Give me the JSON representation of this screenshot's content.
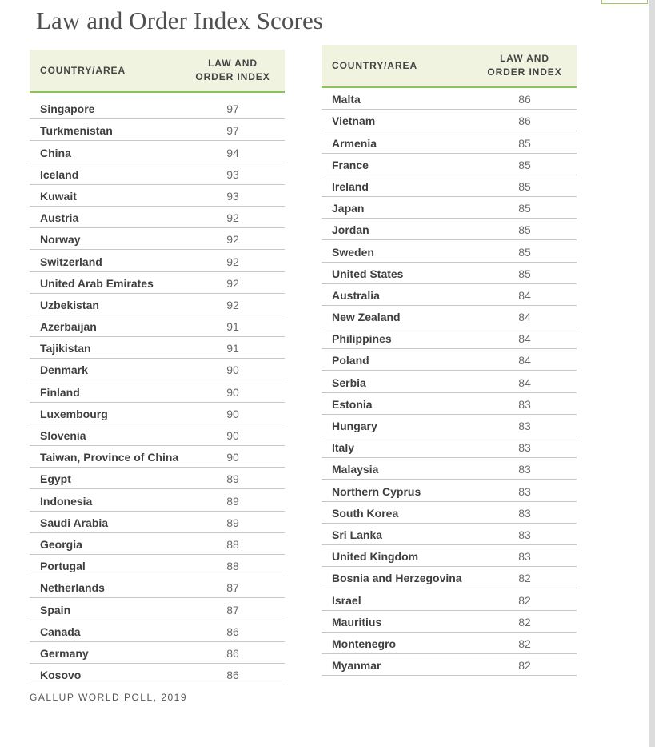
{
  "title": "Law and Order Index Scores",
  "header": {
    "country": "COUNTRY/AREA",
    "index_line1": "LAW AND",
    "index_line2": "ORDER INDEX"
  },
  "left_table": [
    {
      "country": "Singapore",
      "score": "97"
    },
    {
      "country": "Turkmenistan",
      "score": "97"
    },
    {
      "country": "China",
      "score": "94"
    },
    {
      "country": "Iceland",
      "score": "93"
    },
    {
      "country": "Kuwait",
      "score": "93"
    },
    {
      "country": "Austria",
      "score": "92"
    },
    {
      "country": "Norway",
      "score": "92"
    },
    {
      "country": "Switzerland",
      "score": "92"
    },
    {
      "country": "United Arab Emirates",
      "score": "92"
    },
    {
      "country": "Uzbekistan",
      "score": "92"
    },
    {
      "country": "Azerbaijan",
      "score": "91"
    },
    {
      "country": "Tajikistan",
      "score": "91"
    },
    {
      "country": "Denmark",
      "score": "90"
    },
    {
      "country": "Finland",
      "score": "90"
    },
    {
      "country": "Luxembourg",
      "score": "90"
    },
    {
      "country": "Slovenia",
      "score": "90"
    },
    {
      "country": "Taiwan, Province of China",
      "score": "90"
    },
    {
      "country": "Egypt",
      "score": "89"
    },
    {
      "country": "Indonesia",
      "score": "89"
    },
    {
      "country": "Saudi Arabia",
      "score": "89"
    },
    {
      "country": "Georgia",
      "score": "88"
    },
    {
      "country": "Portugal",
      "score": "88"
    },
    {
      "country": "Netherlands",
      "score": "87"
    },
    {
      "country": "Spain",
      "score": "87"
    },
    {
      "country": "Canada",
      "score": "86"
    },
    {
      "country": "Germany",
      "score": "86"
    },
    {
      "country": "Kosovo",
      "score": "86"
    }
  ],
  "right_table": [
    {
      "country": "Malta",
      "score": "86"
    },
    {
      "country": "Vietnam",
      "score": "86"
    },
    {
      "country": "Armenia",
      "score": "85"
    },
    {
      "country": "France",
      "score": "85"
    },
    {
      "country": "Ireland",
      "score": "85"
    },
    {
      "country": "Japan",
      "score": "85"
    },
    {
      "country": "Jordan",
      "score": "85"
    },
    {
      "country": "Sweden",
      "score": "85"
    },
    {
      "country": "United States",
      "score": "85"
    },
    {
      "country": "Australia",
      "score": "84"
    },
    {
      "country": "New Zealand",
      "score": "84"
    },
    {
      "country": "Philippines",
      "score": "84"
    },
    {
      "country": "Poland",
      "score": "84"
    },
    {
      "country": "Serbia",
      "score": "84"
    },
    {
      "country": "Estonia",
      "score": "83"
    },
    {
      "country": "Hungary",
      "score": "83"
    },
    {
      "country": "Italy",
      "score": "83"
    },
    {
      "country": "Malaysia",
      "score": "83"
    },
    {
      "country": "Northern Cyprus",
      "score": "83"
    },
    {
      "country": "South Korea",
      "score": "83"
    },
    {
      "country": "Sri Lanka",
      "score": "83"
    },
    {
      "country": "United Kingdom",
      "score": "83"
    },
    {
      "country": "Bosnia and Herzegovina",
      "score": "82"
    },
    {
      "country": "Israel",
      "score": "82"
    },
    {
      "country": "Mauritius",
      "score": "82"
    },
    {
      "country": "Montenegro",
      "score": "82"
    },
    {
      "country": "Myanmar",
      "score": "82"
    }
  ],
  "source": "GALLUP WORLD POLL, 2019",
  "colors": {
    "header_bg": "#eff3df",
    "header_rule": "#8cc25a",
    "row_rule": "#c8c8c8"
  }
}
